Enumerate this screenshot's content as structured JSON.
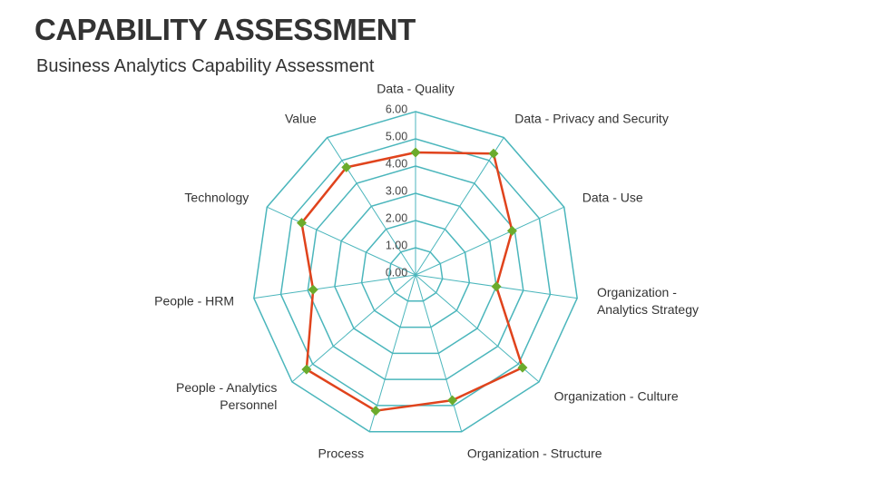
{
  "title": "CAPABILITY ASSESSMENT",
  "chart_data": {
    "type": "radar",
    "title": "Business Analytics Capability Assessment",
    "categories": [
      "Data - Quality",
      "Data - Privacy and Security",
      "Data - Use",
      "Organization - Analytics Strategy",
      "Organization - Culture",
      "Organization - Structure",
      "Process",
      "People - Analytics Personnel",
      "People - HRM",
      "Technology",
      "Value"
    ],
    "values": [
      4.5,
      5.3,
      3.9,
      3.0,
      5.2,
      4.8,
      5.2,
      5.3,
      3.8,
      4.6,
      4.7
    ],
    "color": "#e0431c",
    "marker_color": "#6bab2c",
    "grid_color": "#4bb6bc",
    "ylim": [
      0,
      6
    ],
    "yticks": [
      {
        "value": 0,
        "label": "0.00"
      },
      {
        "value": 1,
        "label": "1.00"
      },
      {
        "value": 2,
        "label": "2.00"
      },
      {
        "value": 3,
        "label": "3.00"
      },
      {
        "value": 4,
        "label": "4.00"
      },
      {
        "value": 5,
        "label": "5.00"
      },
      {
        "value": 6,
        "label": "6.00"
      }
    ]
  }
}
